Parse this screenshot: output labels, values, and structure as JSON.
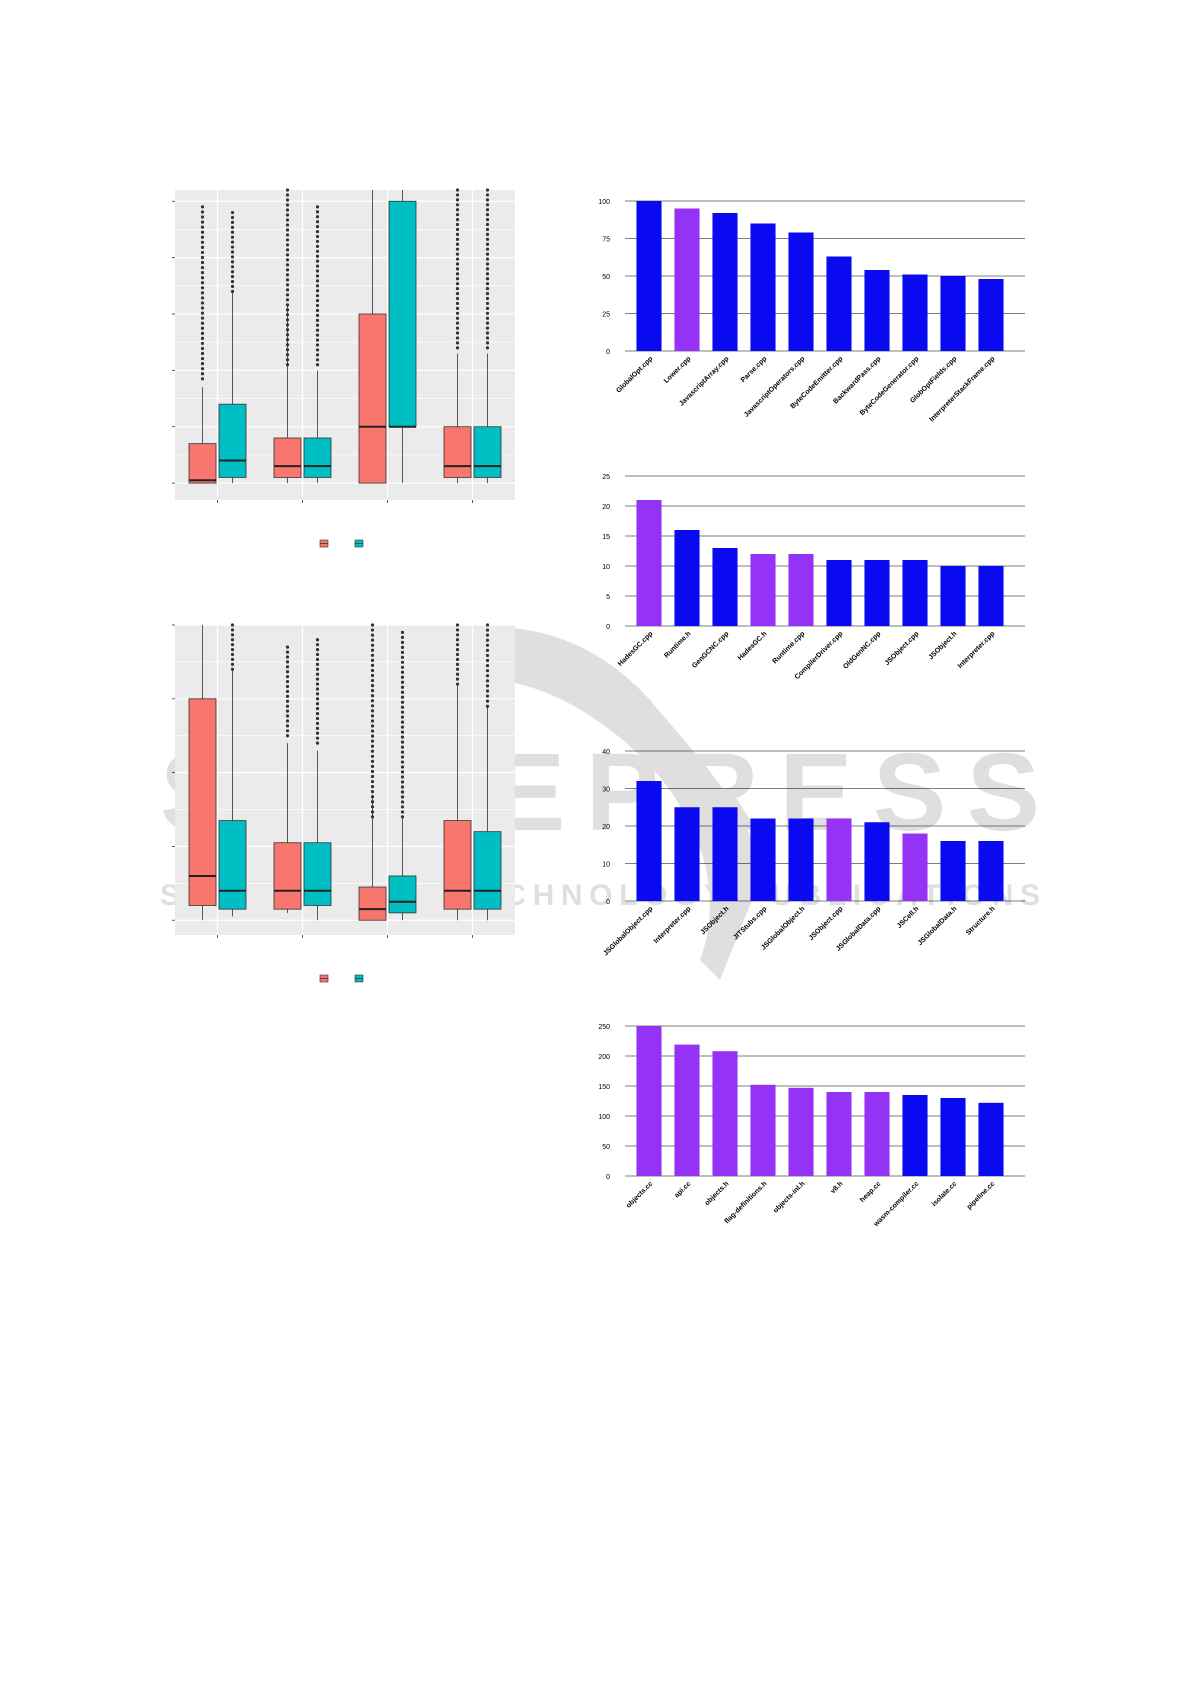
{
  "watermark": {
    "line1": "SCITEPRESS",
    "line2": "SCIENCE AND TECHNOLOGY PUBLICATIONS"
  },
  "colors": {
    "box_red": "#F8766D",
    "box_teal": "#00BFC4",
    "bar_blue": "#0A0AF0",
    "bar_purple": "#9433F5",
    "panel_bg": "#EBEBEB"
  },
  "chart_data": [
    {
      "id": "box-top",
      "type": "box",
      "ylim": [
        -0.3,
        5.2
      ],
      "groups": 4,
      "series": [
        {
          "color_key": "box_red",
          "boxes": [
            {
              "q1": 0,
              "median": 0.05,
              "q3": 0.7,
              "whisker_low": 0,
              "whisker_high": 1.7,
              "outliers_from": 1.85,
              "outliers_to": 4.9
            },
            {
              "q1": 0.1,
              "median": 0.3,
              "q3": 0.8,
              "whisker_low": 0,
              "whisker_high": 3.15,
              "outliers_from": 2.1,
              "outliers_to": 5.2
            },
            {
              "q1": 0,
              "median": 1.0,
              "q3": 3.0,
              "whisker_low": 0,
              "whisker_high": 5.2,
              "outliers_from": null,
              "outliers_to": null
            },
            {
              "q1": 0.1,
              "median": 0.3,
              "q3": 1.0,
              "whisker_low": 0,
              "whisker_high": 2.3,
              "outliers_from": 2.4,
              "outliers_to": 5.2
            }
          ]
        },
        {
          "color_key": "box_teal",
          "boxes": [
            {
              "q1": 0.1,
              "median": 0.4,
              "q3": 1.4,
              "whisker_low": 0,
              "whisker_high": 3.4,
              "outliers_from": 3.4,
              "outliers_to": 4.8
            },
            {
              "q1": 0.1,
              "median": 0.3,
              "q3": 0.8,
              "whisker_low": 0,
              "whisker_high": 2.0,
              "outliers_from": 2.1,
              "outliers_to": 4.9
            },
            {
              "q1": 1.0,
              "median": 1.0,
              "q3": 5.0,
              "whisker_low": 0,
              "whisker_high": 5.2,
              "outliers_from": null,
              "outliers_to": null
            },
            {
              "q1": 0.1,
              "median": 0.3,
              "q3": 1.0,
              "whisker_low": 0,
              "whisker_high": 2.3,
              "outliers_from": 2.4,
              "outliers_to": 5.2
            }
          ]
        }
      ]
    },
    {
      "id": "box-bottom",
      "type": "box",
      "ylim": [
        -0.2,
        4.0
      ],
      "groups": 4,
      "series": [
        {
          "color_key": "box_red",
          "boxes": [
            {
              "q1": 0.2,
              "median": 0.6,
              "q3": 3.0,
              "whisker_low": 0,
              "whisker_high": 4.0,
              "outliers_from": null,
              "outliers_to": null
            },
            {
              "q1": 0.15,
              "median": 0.4,
              "q3": 1.05,
              "whisker_low": 0.1,
              "whisker_high": 2.4,
              "outliers_from": 2.5,
              "outliers_to": 3.7
            },
            {
              "q1": 0,
              "median": 0.15,
              "q3": 0.45,
              "whisker_low": 0,
              "whisker_high": 1.7,
              "outliers_from": 1.4,
              "outliers_to": 4.0
            },
            {
              "q1": 0.15,
              "median": 0.4,
              "q3": 1.35,
              "whisker_low": 0,
              "whisker_high": 3.2,
              "outliers_from": 3.2,
              "outliers_to": 4.0
            }
          ]
        },
        {
          "color_key": "box_teal",
          "boxes": [
            {
              "q1": 0.15,
              "median": 0.4,
              "q3": 1.35,
              "whisker_low": 0.05,
              "whisker_high": 3.4,
              "outliers_from": 3.4,
              "outliers_to": 4.0
            },
            {
              "q1": 0.2,
              "median": 0.4,
              "q3": 1.05,
              "whisker_low": 0,
              "whisker_high": 2.3,
              "outliers_from": 2.4,
              "outliers_to": 3.8
            },
            {
              "q1": 0.1,
              "median": 0.25,
              "q3": 0.6,
              "whisker_low": 0,
              "whisker_high": 1.4,
              "outliers_from": 1.4,
              "outliers_to": 3.9
            },
            {
              "q1": 0.15,
              "median": 0.4,
              "q3": 1.2,
              "whisker_low": 0,
              "whisker_high": 2.9,
              "outliers_from": 2.9,
              "outliers_to": 4.0
            }
          ]
        }
      ]
    },
    {
      "id": "bar-1",
      "type": "bar",
      "ylim": [
        0,
        100
      ],
      "yticks": [
        "0",
        "25",
        "50",
        "75",
        "100"
      ],
      "yticks_values": [
        0,
        25,
        50,
        75,
        100
      ],
      "categories": [
        "GlobalOpt.cpp",
        "Lower.cpp",
        "JavascriptArray.cpp",
        "Parse.cpp",
        "JavascriptOperators.cpp",
        "ByteCodeEmitter.cpp",
        "BackwardPass.cpp",
        "ByteCodeGenerator.cpp",
        "GlobOptFields.cpp",
        "InterpreterStackFrame.cpp"
      ],
      "values": [
        100,
        95,
        92,
        85,
        79,
        63,
        54,
        51,
        50,
        48
      ],
      "colors": [
        "bar_blue",
        "bar_purple",
        "bar_blue",
        "bar_blue",
        "bar_blue",
        "bar_blue",
        "bar_blue",
        "bar_blue",
        "bar_blue",
        "bar_blue"
      ]
    },
    {
      "id": "bar-2",
      "type": "bar",
      "ylim": [
        0,
        25
      ],
      "yticks": [
        "0",
        "5",
        "10",
        "15",
        "20",
        "25"
      ],
      "yticks_values": [
        0,
        5,
        10,
        15,
        20,
        25
      ],
      "categories": [
        "HadesGC.cpp",
        "Runtime.h",
        "GenGCNC.cpp",
        "HadesGC.h",
        "Runtime.cpp",
        "CompilerDriver.cpp",
        "OldGenNC.cpp",
        "JSObject.cpp",
        "JSObject.h",
        "Interpreter.cpp"
      ],
      "values": [
        21,
        16,
        13,
        12,
        12,
        11,
        11,
        11,
        10,
        10
      ],
      "colors": [
        "bar_purple",
        "bar_blue",
        "bar_blue",
        "bar_purple",
        "bar_purple",
        "bar_blue",
        "bar_blue",
        "bar_blue",
        "bar_blue",
        "bar_blue"
      ]
    },
    {
      "id": "bar-3",
      "type": "bar",
      "ylim": [
        0,
        40
      ],
      "yticks": [
        "0",
        "10",
        "20",
        "30",
        "40"
      ],
      "yticks_values": [
        0,
        10,
        20,
        30,
        40
      ],
      "categories": [
        "JSGlobalObject.cpp",
        "Interpreter.cpp",
        "JSObject.h",
        "JITStubs.cpp",
        "JSGlobalObject.h",
        "JSObject.cpp",
        "JSGlobalData.cpp",
        "JSCell.h",
        "JSGlobalData.h",
        "Structure.h"
      ],
      "values": [
        32,
        25,
        25,
        22,
        22,
        22,
        21,
        18,
        16,
        16
      ],
      "colors": [
        "bar_blue",
        "bar_blue",
        "bar_blue",
        "bar_blue",
        "bar_blue",
        "bar_purple",
        "bar_blue",
        "bar_purple",
        "bar_blue",
        "bar_blue"
      ]
    },
    {
      "id": "bar-4",
      "type": "bar",
      "ylim": [
        0,
        250
      ],
      "yticks": [
        "0",
        "50",
        "100",
        "150",
        "200",
        "250"
      ],
      "yticks_values": [
        0,
        50,
        100,
        150,
        200,
        250
      ],
      "categories": [
        "objects.cc",
        "api.cc",
        "objects.h",
        "flag-definitions.h",
        "objects-inl.h",
        "v8.h",
        "heap.cc",
        "wasm-compiler.cc",
        "isolate.cc",
        "pipeline.cc"
      ],
      "values": [
        250,
        219,
        208,
        152,
        147,
        140,
        140,
        135,
        130,
        122
      ],
      "colors": [
        "bar_purple",
        "bar_purple",
        "bar_purple",
        "bar_purple",
        "bar_purple",
        "bar_purple",
        "bar_purple",
        "bar_blue",
        "bar_blue",
        "bar_blue"
      ]
    }
  ]
}
